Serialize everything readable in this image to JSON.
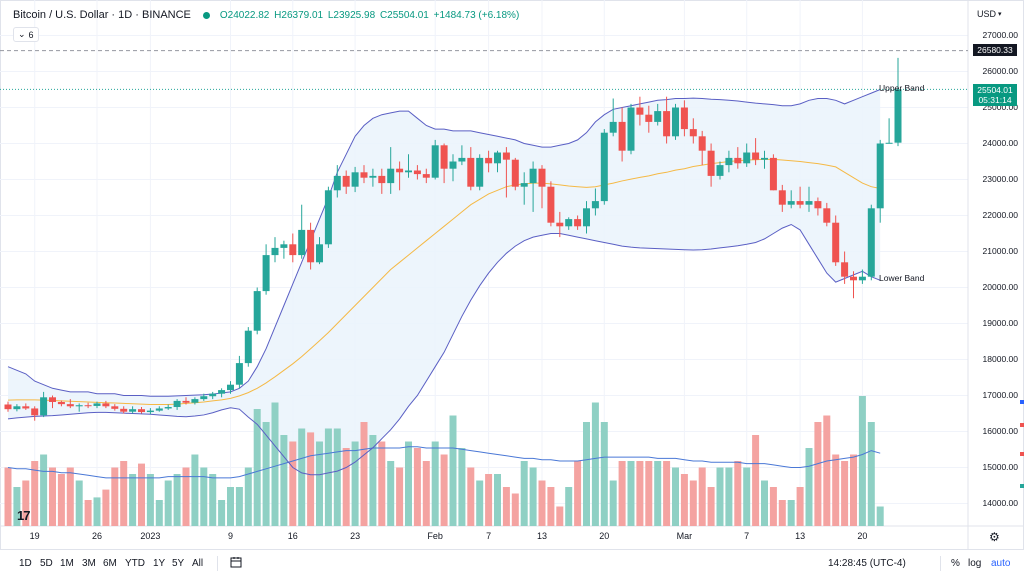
{
  "header": {
    "symbol": "Bitcoin / U.S. Dollar · 1D · BINANCE",
    "ohlc": {
      "open": "O24022.82",
      "high": "H26379.01",
      "low": "L23925.98",
      "close": "C25504.01",
      "change": "+1484.73 (+6.18%)"
    },
    "collapse_label": "6"
  },
  "axis": {
    "currency": "USD",
    "price_labels": [
      "27000.00",
      "26000.00",
      "25000.00",
      "24000.00",
      "23000.00",
      "22000.00",
      "21000.00",
      "20000.00",
      "19000.00",
      "18000.00",
      "17000.00",
      "16000.00",
      "15000.00",
      "14000.00"
    ],
    "time_labels": [
      "19",
      "26",
      "2023",
      "9",
      "16",
      "23",
      "Feb",
      "7",
      "13",
      "20",
      "Mar",
      "7",
      "13",
      "20"
    ],
    "crosshair_price": "26580.33",
    "last_price": "25504.01",
    "countdown": "05:31:14"
  },
  "annotations": {
    "upper_band": "Upper Band",
    "lower_band": "Lower Band"
  },
  "bottom_bar": {
    "ranges": [
      "1D",
      "5D",
      "1M",
      "3M",
      "6M",
      "YTD",
      "1Y",
      "5Y",
      "All"
    ],
    "clock": "14:28:45 (UTC-4)",
    "percent": "%",
    "log": "log",
    "auto": "auto"
  },
  "colors": {
    "up": "#26a69a",
    "down": "#ef5350",
    "vol_up": "#8fd0c4",
    "vol_down": "#f4a3a1",
    "band": "#5a5fc4",
    "basis": "#f5b945",
    "fill": "#eaf3fb"
  },
  "chart_data": {
    "type": "candlestick",
    "title": "Bitcoin / U.S. Dollar · 1D · BINANCE",
    "ylim": [
      13600,
      27800
    ],
    "y_ticks": [
      14000,
      15000,
      16000,
      17000,
      18000,
      19000,
      20000,
      21000,
      22000,
      23000,
      24000,
      25000,
      26000,
      27000
    ],
    "x_tick_labels": [
      {
        "i": 3,
        "label": "19"
      },
      {
        "i": 10,
        "label": "26"
      },
      {
        "i": 16,
        "label": "2023"
      },
      {
        "i": 25,
        "label": "9"
      },
      {
        "i": 32,
        "label": "16"
      },
      {
        "i": 39,
        "label": "23"
      },
      {
        "i": 48,
        "label": "Feb"
      },
      {
        "i": 54,
        "label": "7"
      },
      {
        "i": 60,
        "label": "13"
      },
      {
        "i": 67,
        "label": "20"
      },
      {
        "i": 76,
        "label": "Mar"
      },
      {
        "i": 83,
        "label": "7"
      },
      {
        "i": 89,
        "label": "13"
      },
      {
        "i": 96,
        "label": "20"
      }
    ],
    "candles": [
      [
        16750,
        16830,
        16550,
        16620
      ],
      [
        16620,
        16760,
        16560,
        16700
      ],
      [
        16700,
        16780,
        16600,
        16640
      ],
      [
        16640,
        16700,
        16300,
        16450
      ],
      [
        16450,
        17100,
        16400,
        16950
      ],
      [
        16950,
        17000,
        16650,
        16820
      ],
      [
        16820,
        16860,
        16700,
        16760
      ],
      [
        16760,
        16900,
        16650,
        16700
      ],
      [
        16700,
        16780,
        16550,
        16730
      ],
      [
        16730,
        16800,
        16650,
        16710
      ],
      [
        16710,
        16830,
        16650,
        16780
      ],
      [
        16780,
        16850,
        16650,
        16700
      ],
      [
        16700,
        16760,
        16580,
        16630
      ],
      [
        16630,
        16700,
        16500,
        16550
      ],
      [
        16550,
        16700,
        16500,
        16620
      ],
      [
        16620,
        16680,
        16500,
        16540
      ],
      [
        16540,
        16650,
        16480,
        16580
      ],
      [
        16580,
        16700,
        16550,
        16640
      ],
      [
        16640,
        16750,
        16600,
        16680
      ],
      [
        16680,
        16900,
        16600,
        16850
      ],
      [
        16850,
        16950,
        16750,
        16800
      ],
      [
        16800,
        16950,
        16750,
        16900
      ],
      [
        16900,
        17050,
        16850,
        16980
      ],
      [
        16980,
        17100,
        16900,
        17050
      ],
      [
        17050,
        17200,
        16950,
        17150
      ],
      [
        17150,
        17400,
        17050,
        17300
      ],
      [
        17300,
        18100,
        17200,
        17900
      ],
      [
        17900,
        18900,
        17800,
        18800
      ],
      [
        18800,
        20000,
        18700,
        19900
      ],
      [
        19900,
        21200,
        19800,
        20900
      ],
      [
        20900,
        21400,
        20700,
        21100
      ],
      [
        21100,
        21300,
        20800,
        21200
      ],
      [
        21200,
        21500,
        20700,
        20900
      ],
      [
        20900,
        22300,
        20800,
        21600
      ],
      [
        21600,
        21800,
        20500,
        20700
      ],
      [
        20700,
        21400,
        20650,
        21200
      ],
      [
        21200,
        22800,
        21100,
        22700
      ],
      [
        22700,
        23400,
        22500,
        23100
      ],
      [
        23100,
        23250,
        22600,
        22800
      ],
      [
        22800,
        23350,
        22650,
        23200
      ],
      [
        23200,
        23400,
        22900,
        23050
      ],
      [
        23050,
        23300,
        22800,
        23100
      ],
      [
        23100,
        23300,
        22600,
        22900
      ],
      [
        22900,
        23900,
        22600,
        23300
      ],
      [
        23300,
        23500,
        22700,
        23200
      ],
      [
        23200,
        23700,
        23050,
        23250
      ],
      [
        23250,
        23400,
        23000,
        23150
      ],
      [
        23150,
        23300,
        22900,
        23050
      ],
      [
        23050,
        24100,
        23000,
        23950
      ],
      [
        23950,
        24000,
        22900,
        23300
      ],
      [
        23300,
        23700,
        22950,
        23500
      ],
      [
        23500,
        23950,
        23400,
        23600
      ],
      [
        23600,
        23900,
        22700,
        22800
      ],
      [
        22800,
        23700,
        22700,
        23600
      ],
      [
        23600,
        23800,
        23200,
        23450
      ],
      [
        23450,
        23800,
        23200,
        23750
      ],
      [
        23750,
        23900,
        22500,
        23550
      ],
      [
        23550,
        23600,
        22700,
        22800
      ],
      [
        22800,
        23200,
        22300,
        22900
      ],
      [
        22900,
        23500,
        22100,
        23300
      ],
      [
        23300,
        23400,
        22200,
        22800
      ],
      [
        22800,
        22950,
        21700,
        21800
      ],
      [
        21800,
        22100,
        21400,
        21700
      ],
      [
        21700,
        21950,
        21600,
        21900
      ],
      [
        21900,
        22000,
        21600,
        21700
      ],
      [
        21700,
        22400,
        21500,
        22200
      ],
      [
        22200,
        22750,
        22000,
        22400
      ],
      [
        22400,
        24400,
        22300,
        24300
      ],
      [
        24300,
        25250,
        24200,
        24600
      ],
      [
        24600,
        25000,
        23500,
        23800
      ],
      [
        23800,
        25100,
        23700,
        25000
      ],
      [
        25000,
        25300,
        24500,
        24800
      ],
      [
        24800,
        25050,
        24300,
        24600
      ],
      [
        24600,
        25100,
        24500,
        24900
      ],
      [
        24900,
        25300,
        24000,
        24200
      ],
      [
        24200,
        25100,
        24100,
        25000
      ],
      [
        25000,
        25200,
        24200,
        24400
      ],
      [
        24400,
        24700,
        24000,
        24200
      ],
      [
        24200,
        24350,
        23400,
        23800
      ],
      [
        23800,
        24000,
        22800,
        23100
      ],
      [
        23100,
        23500,
        23000,
        23400
      ],
      [
        23400,
        23800,
        23200,
        23600
      ],
      [
        23600,
        23900,
        23300,
        23450
      ],
      [
        23450,
        24000,
        23350,
        23750
      ],
      [
        23750,
        24150,
        23400,
        23550
      ],
      [
        23550,
        23800,
        23300,
        23600
      ],
      [
        23600,
        23700,
        22700,
        22700
      ],
      [
        22700,
        22850,
        22100,
        22300
      ],
      [
        22300,
        22700,
        22200,
        22400
      ],
      [
        22400,
        22800,
        22200,
        22300
      ],
      [
        22300,
        22800,
        22100,
        22400
      ],
      [
        22400,
        22500,
        22000,
        22200
      ],
      [
        22200,
        22350,
        21700,
        21800
      ],
      [
        21800,
        22000,
        20600,
        20700
      ],
      [
        20700,
        21000,
        20100,
        20300
      ],
      [
        20300,
        20450,
        19700,
        20200
      ],
      [
        20200,
        20500,
        20100,
        20300
      ],
      [
        20300,
        22300,
        20200,
        22200
      ],
      [
        22200,
        24100,
        21800,
        24000
      ],
      [
        24000,
        24700,
        24000,
        24020
      ],
      [
        24022.82,
        26379.01,
        23925.98,
        25504.01
      ]
    ],
    "volume": [
      0.45,
      0.3,
      0.35,
      0.5,
      0.55,
      0.45,
      0.4,
      0.45,
      0.35,
      0.2,
      0.22,
      0.28,
      0.45,
      0.5,
      0.4,
      0.48,
      0.4,
      0.2,
      0.35,
      0.4,
      0.45,
      0.55,
      0.45,
      0.4,
      0.2,
      0.3,
      0.3,
      0.45,
      0.9,
      0.8,
      0.95,
      0.7,
      0.65,
      0.75,
      0.72,
      0.65,
      0.75,
      0.75,
      0.6,
      0.65,
      0.8,
      0.7,
      0.65,
      0.5,
      0.45,
      0.65,
      0.6,
      0.5,
      0.65,
      0.55,
      0.85,
      0.6,
      0.45,
      0.35,
      0.4,
      0.4,
      0.3,
      0.25,
      0.5,
      0.45,
      0.35,
      0.3,
      0.15,
      0.3,
      0.5,
      0.8,
      0.95,
      0.8,
      0.35,
      0.5,
      0.5,
      0.5,
      0.5,
      0.5,
      0.5,
      0.45,
      0.4,
      0.35,
      0.45,
      0.3,
      0.45,
      0.45,
      0.5,
      0.45,
      0.7,
      0.35,
      0.3,
      0.2,
      0.2,
      0.3,
      0.6,
      0.8,
      0.85,
      0.55,
      0.5,
      0.55,
      1.0,
      0.8,
      0.15
    ],
    "series": [
      {
        "name": "Upper Band",
        "values": [
          17800,
          17700,
          17600,
          17400,
          17300,
          17200,
          17150,
          17100,
          17100,
          17100,
          17050,
          17050,
          17050,
          17000,
          17000,
          17000,
          16980,
          16980,
          16980,
          16990,
          17000,
          17010,
          17020,
          17040,
          17070,
          17100,
          17200,
          17400,
          17800,
          18300,
          18900,
          19500,
          20100,
          20700,
          21300,
          21900,
          22500,
          23200,
          23700,
          24200,
          24500,
          24700,
          24800,
          24850,
          24900,
          24900,
          24700,
          24500,
          24400,
          24400,
          24350,
          24350,
          24350,
          24300,
          24250,
          24200,
          24150,
          24100,
          24000,
          23950,
          23900,
          23900,
          23950,
          24000,
          24100,
          24300,
          24600,
          24800,
          24950,
          25000,
          25050,
          25100,
          25150,
          25200,
          25220,
          25250,
          25250,
          25260,
          25250,
          25230,
          25220,
          25200,
          25180,
          25150,
          25120,
          25100,
          25080,
          25050,
          25050,
          25100,
          25200,
          25250,
          25250,
          25200,
          25100,
          25200,
          25300,
          25400,
          25500
        ]
      },
      {
        "name": "Basis",
        "values": [
          16870,
          16880,
          16880,
          16880,
          16870,
          16860,
          16850,
          16840,
          16830,
          16820,
          16810,
          16800,
          16790,
          16780,
          16770,
          16760,
          16750,
          16750,
          16750,
          16760,
          16780,
          16800,
          16820,
          16850,
          16880,
          16920,
          16990,
          17080,
          17200,
          17350,
          17520,
          17700,
          17880,
          18080,
          18300,
          18520,
          18750,
          19000,
          19250,
          19500,
          19750,
          20000,
          20250,
          20500,
          20700,
          20900,
          21100,
          21300,
          21500,
          21700,
          21900,
          22100,
          22300,
          22450,
          22600,
          22700,
          22800,
          22850,
          22880,
          22900,
          22900,
          22880,
          22850,
          22820,
          22800,
          22780,
          22800,
          22850,
          22900,
          22960,
          23010,
          23060,
          23100,
          23160,
          23200,
          23260,
          23300,
          23360,
          23400,
          23440,
          23470,
          23500,
          23520,
          23540,
          23550,
          23560,
          23560,
          23540,
          23520,
          23500,
          23470,
          23440,
          23400,
          23350,
          23200,
          23050,
          22900,
          22800,
          22750
        ]
      },
      {
        "name": "Lower Band",
        "values": [
          16350,
          16380,
          16400,
          16420,
          16430,
          16440,
          16460,
          16480,
          16500,
          16520,
          16530,
          16530,
          16520,
          16510,
          16500,
          16490,
          16480,
          16460,
          16440,
          16420,
          16410,
          16430,
          16460,
          16520,
          16600,
          16660,
          16620,
          16400,
          16200,
          15900,
          15600,
          15300,
          15000,
          14850,
          14800,
          14800,
          14850,
          14900,
          15000,
          15150,
          15350,
          15550,
          15800,
          16050,
          16350,
          16700,
          17000,
          17400,
          17800,
          18200,
          18700,
          19200,
          19650,
          20050,
          20400,
          20700,
          20950,
          21150,
          21300,
          21400,
          21450,
          21500,
          21500,
          21450,
          21400,
          21350,
          21300,
          21250,
          21200,
          21150,
          21120,
          21100,
          21090,
          21080,
          21070,
          21060,
          21050,
          21040,
          21050,
          21070,
          21100,
          21130,
          21160,
          21200,
          21250,
          21350,
          21500,
          21650,
          21750,
          21600,
          21200,
          20800,
          20400,
          20150,
          20250,
          20350,
          20450,
          20300,
          20200
        ]
      },
      {
        "name": "Volume MA",
        "values": [
          0.45,
          0.44,
          0.44,
          0.43,
          0.42,
          0.42,
          0.41,
          0.41,
          0.4,
          0.39,
          0.38,
          0.37,
          0.37,
          0.37,
          0.37,
          0.37,
          0.37,
          0.37,
          0.38,
          0.38,
          0.38,
          0.38,
          0.38,
          0.37,
          0.37,
          0.37,
          0.38,
          0.4,
          0.42,
          0.44,
          0.46,
          0.48,
          0.5,
          0.52,
          0.54,
          0.55,
          0.56,
          0.57,
          0.58,
          0.58,
          0.59,
          0.6,
          0.6,
          0.6,
          0.6,
          0.61,
          0.61,
          0.6,
          0.6,
          0.6,
          0.6,
          0.59,
          0.58,
          0.57,
          0.56,
          0.55,
          0.54,
          0.53,
          0.52,
          0.52,
          0.51,
          0.51,
          0.5,
          0.5,
          0.5,
          0.51,
          0.52,
          0.53,
          0.53,
          0.53,
          0.53,
          0.53,
          0.53,
          0.52,
          0.52,
          0.52,
          0.51,
          0.5,
          0.5,
          0.49,
          0.49,
          0.49,
          0.49,
          0.48,
          0.48,
          0.48,
          0.47,
          0.46,
          0.45,
          0.45,
          0.46,
          0.48,
          0.5,
          0.51,
          0.52,
          0.53,
          0.55,
          0.58,
          0.56
        ]
      }
    ]
  }
}
